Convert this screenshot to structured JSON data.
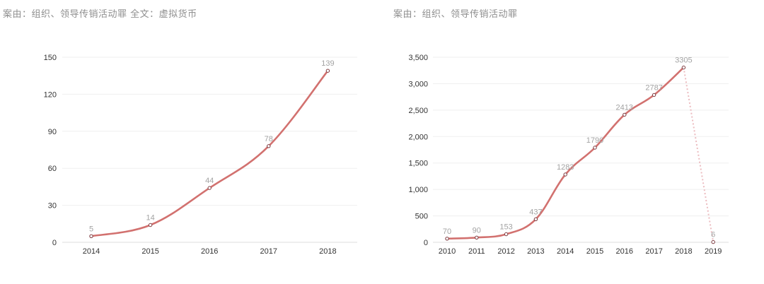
{
  "captions": {
    "left": "案由：组织、领导传销活动罪   全文：虚拟货币",
    "right": "案由：组织、领导传销活动罪"
  },
  "colors": {
    "line": "#d2716f",
    "dashed": "#ecbcc0",
    "label": "#a3a3a3",
    "tick": "#333333"
  },
  "chart_data": [
    {
      "type": "line",
      "title": "",
      "xlabel": "",
      "ylabel": "",
      "categories": [
        "2014",
        "2015",
        "2016",
        "2017",
        "2018"
      ],
      "values": [
        5,
        14,
        44,
        78,
        139
      ],
      "ylim": [
        0,
        150
      ],
      "yticks": [
        0,
        30,
        60,
        90,
        120,
        150
      ],
      "ytick_labels": [
        "0",
        "30",
        "60",
        "90",
        "120",
        "150"
      ],
      "data_labels": [
        "5",
        "14",
        "44",
        "78",
        "139"
      ],
      "grid": true,
      "smooth": true
    },
    {
      "type": "line",
      "title": "",
      "xlabel": "",
      "ylabel": "",
      "categories": [
        "2010",
        "2011",
        "2012",
        "2013",
        "2014",
        "2015",
        "2016",
        "2017",
        "2018",
        "2019"
      ],
      "values": [
        70,
        90,
        153,
        437,
        1283,
        1790,
        2413,
        2787,
        3305,
        6
      ],
      "ylim": [
        0,
        3500
      ],
      "yticks": [
        0,
        500,
        1000,
        1500,
        2000,
        2500,
        3000,
        3500
      ],
      "ytick_labels": [
        "0",
        "500",
        "1,000",
        "1,500",
        "2,000",
        "2,500",
        "3,000",
        "3,500"
      ],
      "data_labels": [
        "70",
        "90",
        "153",
        "437",
        "1283",
        "1790",
        "2413",
        "2787",
        "3305",
        "6"
      ],
      "dashed_last_segment": true,
      "grid": true,
      "smooth": true
    }
  ]
}
